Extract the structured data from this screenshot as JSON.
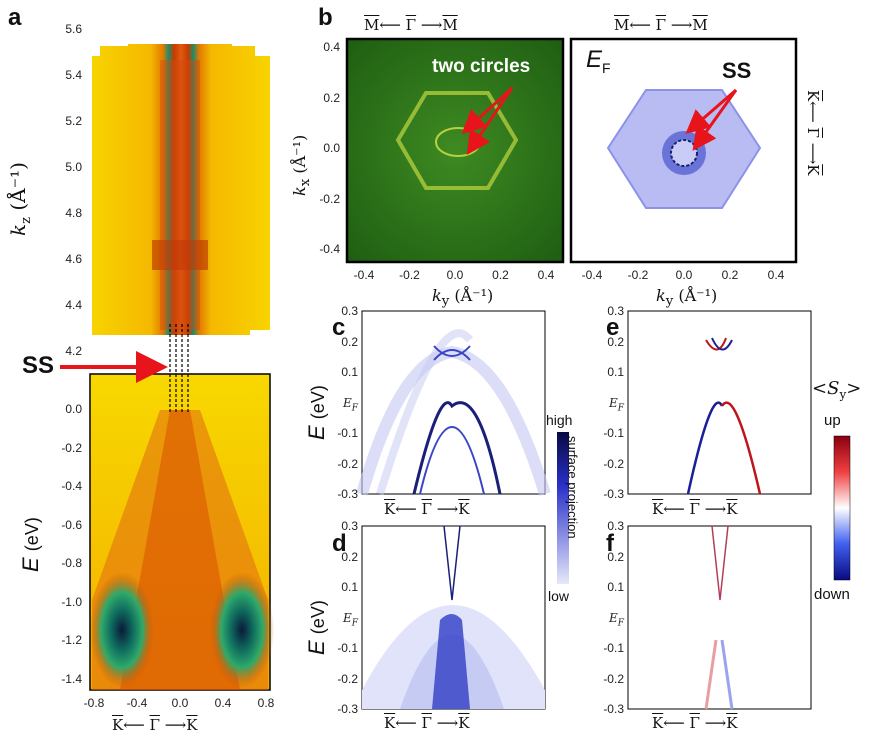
{
  "labels": {
    "a": "a",
    "b": "b",
    "c": "c",
    "d": "d",
    "e": "e",
    "f": "f"
  },
  "panel_a": {
    "kz_ticks": [
      "5.6",
      "5.4",
      "5.2",
      "5.0",
      "4.8",
      "4.6",
      "4.4",
      "4.2"
    ],
    "kz_label": "k",
    "kz_sub": "z",
    "kz_unit": "(Å⁻¹)",
    "ss_label": "SS",
    "e_ticks": [
      "0.0",
      "-0.2",
      "-0.4",
      "-0.6",
      "-0.8",
      "-1.0",
      "-1.2",
      "-1.4"
    ],
    "e_label": "E",
    "e_unit": "(eV)",
    "x_ticks": [
      "-0.8",
      "-0.4",
      "0.0",
      "0.4",
      "0.8"
    ],
    "x_axis": {
      "left": "K",
      "left_arrow": "⟵",
      "center": "Γ",
      "right_arrow": "⟶",
      "right": "K"
    }
  },
  "panel_b": {
    "top_axis": {
      "left": "M",
      "left_arrow": "⟵",
      "center": "Γ",
      "right_arrow": "⟶",
      "right": "M"
    },
    "kx_label": "k",
    "kx_sub": "x",
    "kx_unit": "(Å⁻¹)",
    "y_ticks": [
      "0.4",
      "0.2",
      "0.0",
      "-0.2",
      "-0.4"
    ],
    "x_ticks": [
      "-0.4",
      "-0.2",
      "0.0",
      "0.2",
      "0.4"
    ],
    "ky_label": "k",
    "ky_sub": "y",
    "ky_unit": "(Å⁻¹)",
    "annotation": "two circles",
    "ef_label": "E",
    "ef_sub": "F",
    "ss_label": "SS",
    "right_axis": {
      "top": "K",
      "top_arrow": "⟵",
      "center": "Γ",
      "bottom_arrow": "⟶",
      "bottom": "K"
    }
  },
  "panel_c": {
    "e_ticks": [
      "0.3",
      "0.2",
      "0.1",
      "E_F",
      "-0.1",
      "-0.2",
      "-0.3"
    ],
    "ef_tick": "E",
    "ef_tick_sub": "F",
    "e_label": "E",
    "e_unit": "(eV)",
    "x_axis": {
      "left": "K",
      "left_arrow": "⟵",
      "center": "Γ",
      "right_arrow": "⟶",
      "right": "K"
    }
  },
  "panel_d": {
    "e_ticks": [
      "0.3",
      "0.2",
      "0.1",
      "E_F",
      "-0.1",
      "-0.2",
      "-0.3"
    ],
    "ef_tick": "E",
    "ef_tick_sub": "F",
    "e_label": "E",
    "e_unit": "(eV)",
    "x_axis": {
      "left": "K",
      "left_arrow": "⟵",
      "center": "Γ",
      "right_arrow": "⟶",
      "right": "K"
    }
  },
  "panel_e": {
    "e_ticks": [
      "0.3",
      "0.2",
      "0.1",
      "E_F",
      "-0.1",
      "-0.2",
      "-0.3"
    ],
    "ef_tick": "E",
    "ef_tick_sub": "F",
    "x_axis": {
      "left": "K",
      "left_arrow": "⟵",
      "center": "Γ",
      "right_arrow": "⟶",
      "right": "K"
    }
  },
  "panel_f": {
    "e_ticks": [
      "0.3",
      "0.2",
      "0.1",
      "E_F",
      "-0.1",
      "-0.2",
      "-0.3"
    ],
    "ef_tick": "E",
    "ef_tick_sub": "F",
    "x_axis": {
      "left": "K",
      "left_arrow": "⟵",
      "center": "Γ",
      "right_arrow": "⟶",
      "right": "K"
    }
  },
  "colorbar_projection": {
    "high": "high",
    "low": "low",
    "title": "surface projection"
  },
  "colorbar_spin": {
    "title_open": "<",
    "title_S": "S",
    "title_sub": "y",
    "title_close": ">",
    "up": "up",
    "down": "down"
  },
  "colors": {
    "accent_red": "#e8141b",
    "arpes_green": "#2f7a1e",
    "proj_blue": "#3a46c8",
    "spin_red": "#c0141b"
  }
}
